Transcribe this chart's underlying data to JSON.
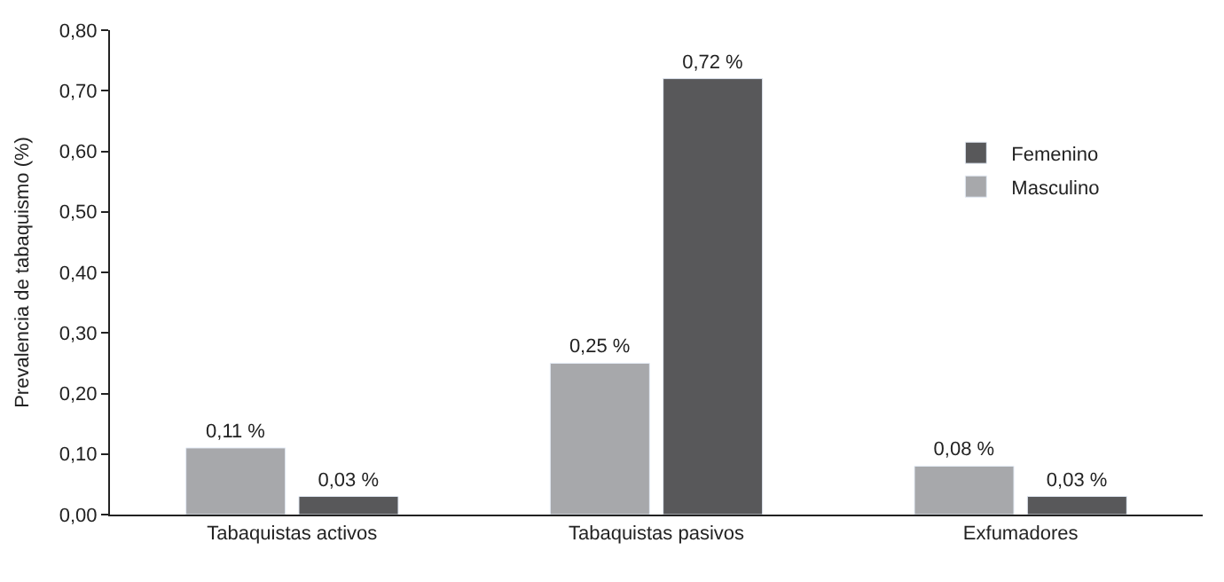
{
  "chart_data": {
    "type": "bar",
    "ylabel": "Prevalencia de tabaquismo (%)",
    "categories": [
      "Tabaquistas activos",
      "Tabaquistas pasivos",
      "Exfumadores"
    ],
    "series": [
      {
        "name": "Masculino",
        "color": "#a7a8ab",
        "values": [
          0.11,
          0.25,
          0.08
        ],
        "value_labels": [
          "0,11 %",
          "0,25 %",
          "0,08 %"
        ]
      },
      {
        "name": "Femenino",
        "color": "#58585a",
        "values": [
          0.03,
          0.72,
          0.03
        ],
        "value_labels": [
          "0,03 %",
          "0,72 %",
          "0,03 %"
        ]
      }
    ],
    "ylim": [
      0,
      0.8
    ],
    "yticks": [
      {
        "value": 0,
        "label": "0,00"
      },
      {
        "value": 0.1,
        "label": "0,10"
      },
      {
        "value": 0.2,
        "label": "0,20"
      },
      {
        "value": 0.3,
        "label": "0,30"
      },
      {
        "value": 0.4,
        "label": "0,40"
      },
      {
        "value": 0.5,
        "label": "0,50"
      },
      {
        "value": 0.6,
        "label": "0,60"
      },
      {
        "value": 0.7,
        "label": "0,70"
      },
      {
        "value": 0.8,
        "label": "0,80"
      }
    ],
    "grid": false,
    "legend": "top right"
  }
}
